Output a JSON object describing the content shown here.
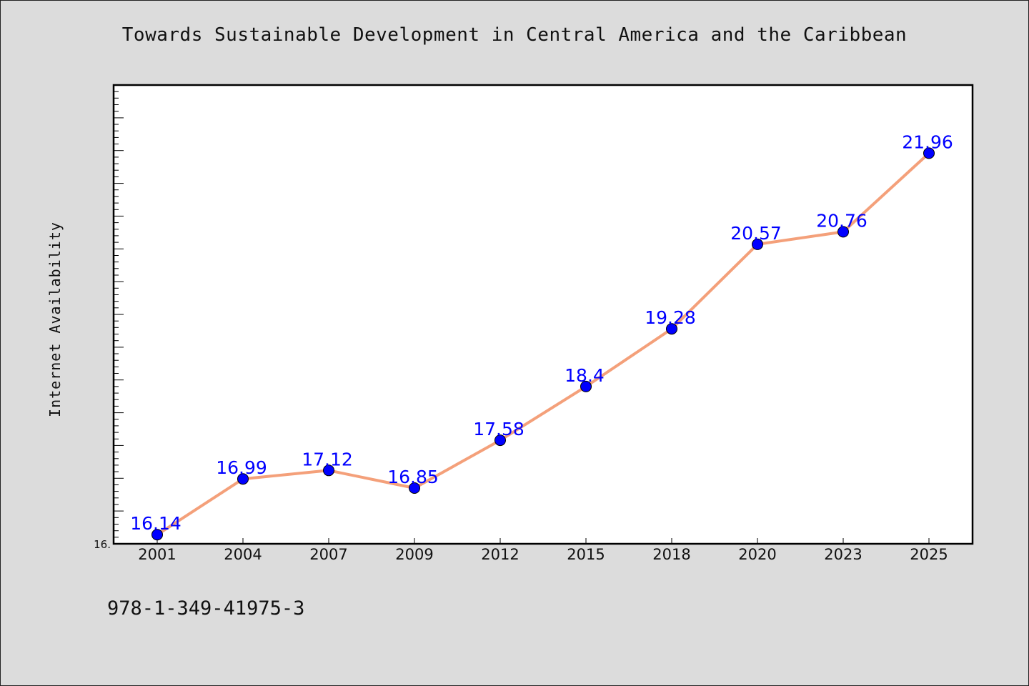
{
  "chart_data": {
    "type": "line",
    "title": "Towards Sustainable Development in Central America and the Caribbean",
    "ylabel": "Internet Availability",
    "xlabel": "",
    "categories": [
      "2001",
      "2004",
      "2007",
      "2009",
      "2012",
      "2015",
      "2018",
      "2020",
      "2023",
      "2025"
    ],
    "values": [
      16.14,
      16.99,
      17.12,
      16.85,
      17.58,
      18.4,
      19.28,
      20.57,
      20.76,
      21.96
    ],
    "data_labels": [
      "16.14",
      "16.99",
      "17.12",
      "16.85",
      "17.58",
      "18.4",
      "19.28",
      "20.57",
      "20.76",
      "21.96"
    ],
    "ylim": [
      16.0,
      23.0
    ],
    "y_tick_labels": [
      {
        "value": 16.0,
        "label": "16."
      }
    ],
    "grid": false,
    "colors": {
      "line": "#f4a07a",
      "marker": "#0000ff",
      "data_label": "#0000ff",
      "background": "#dcdcdc",
      "plot_background": "#ffffff"
    }
  },
  "footer": {
    "isbn": "978-1-349-41975-3"
  }
}
